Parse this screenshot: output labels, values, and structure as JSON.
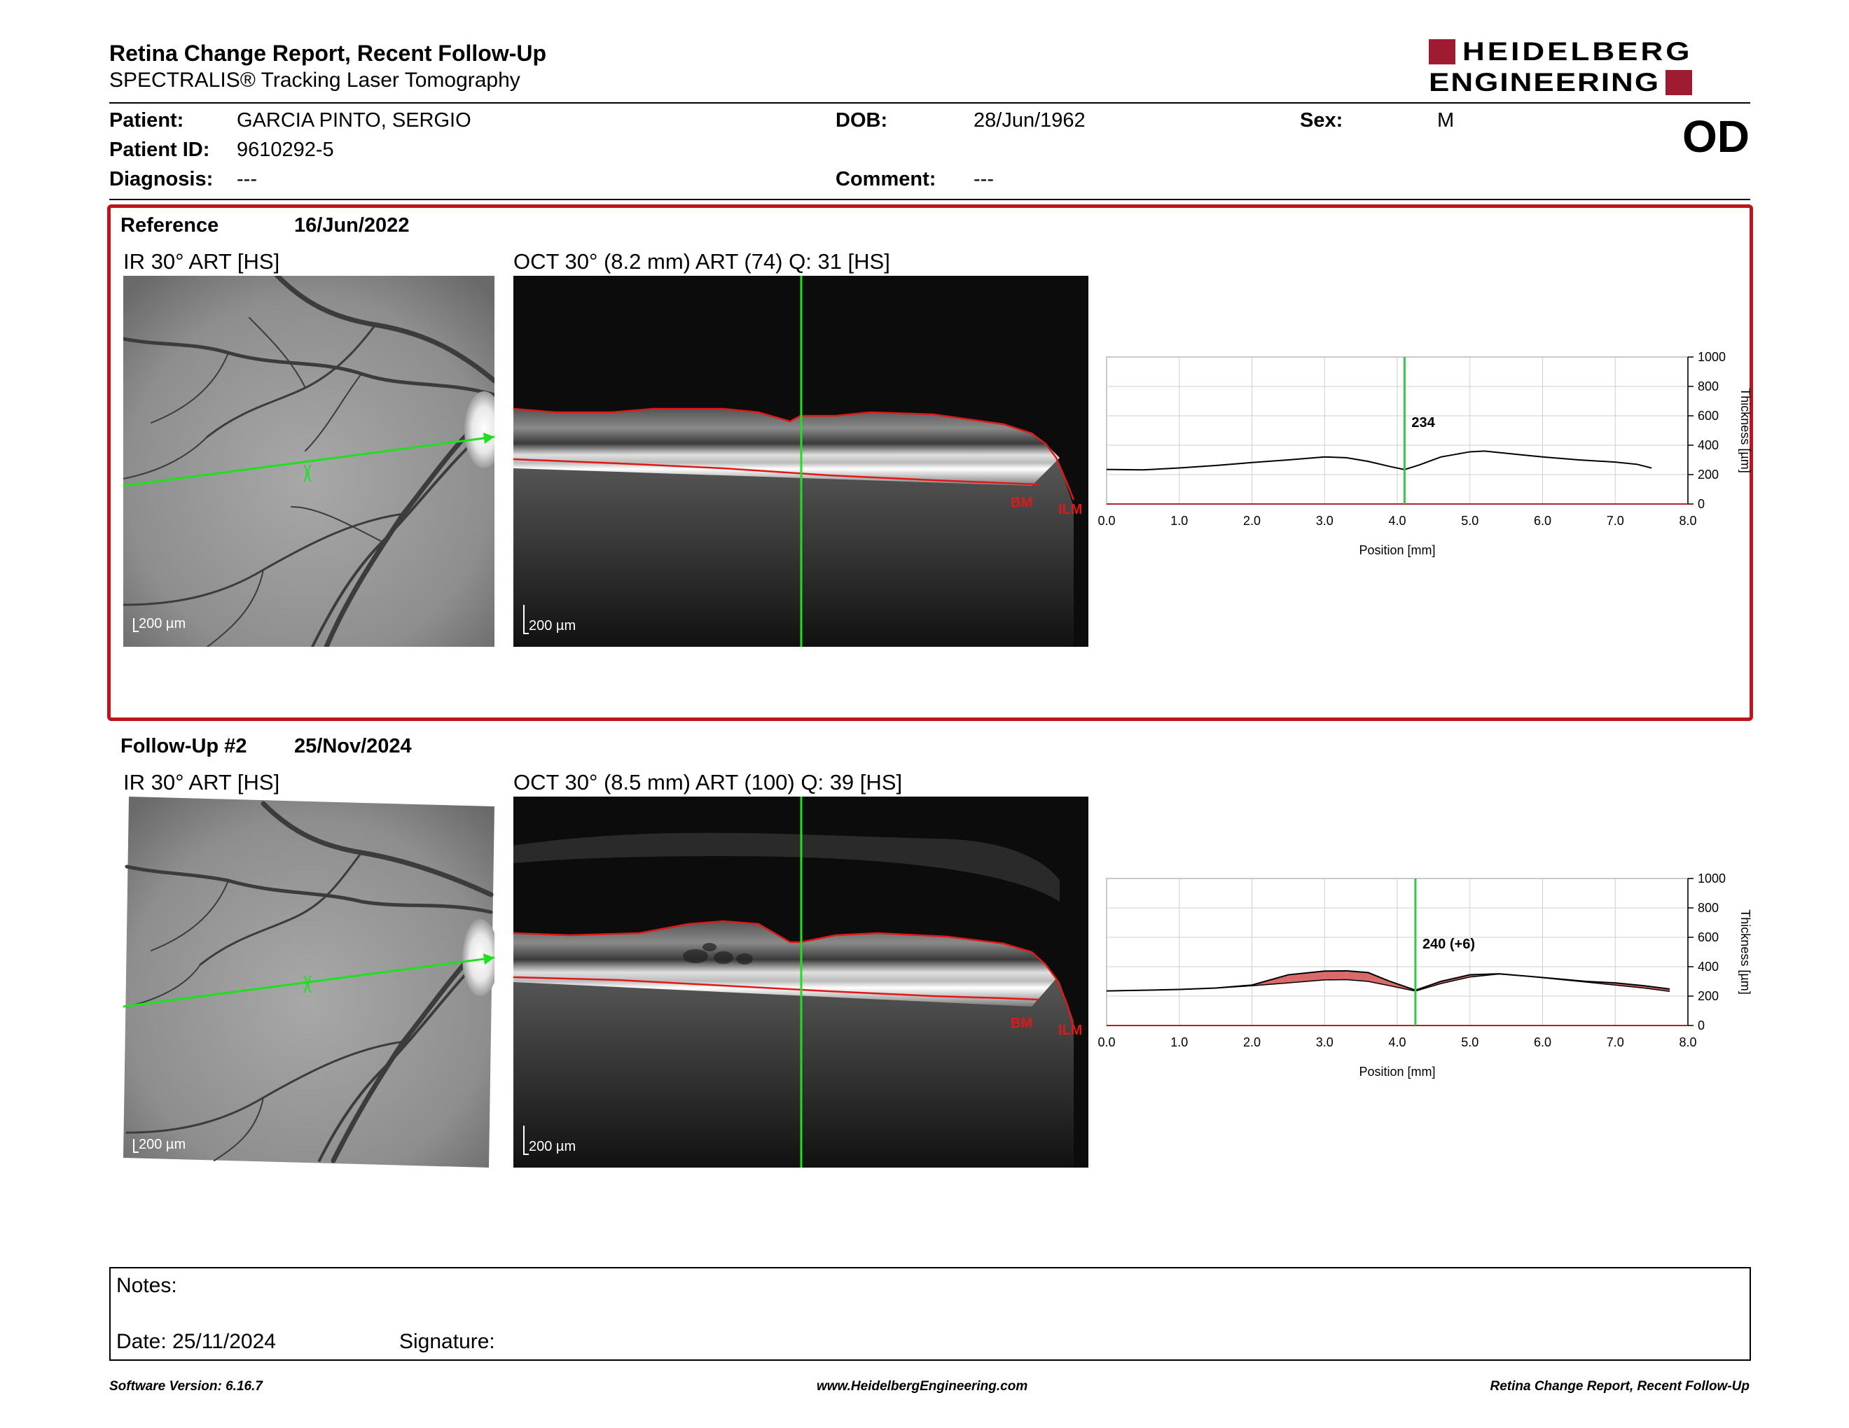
{
  "header": {
    "title": "Retina Change Report, Recent Follow-Up",
    "subtitle": "SPECTRALIS® Tracking Laser Tomography",
    "logo_line1": "HEIDELBERG",
    "logo_line2": "ENGINEERING",
    "brand_color": "#9e1b32"
  },
  "patient": {
    "patient_label": "Patient:",
    "patient_value": "GARCIA PINTO, SERGIO",
    "id_label": "Patient ID:",
    "id_value": "9610292-5",
    "diagnosis_label": "Diagnosis:",
    "diagnosis_value": "---",
    "dob_label": "DOB:",
    "dob_value": "28/Jun/1962",
    "comment_label": "Comment:",
    "comment_value": "---",
    "sex_label": "Sex:",
    "sex_value": "M",
    "eye": "OD"
  },
  "reference": {
    "label": "Reference",
    "date": "16/Jun/2022",
    "ir_title": "IR 30° ART [HS]",
    "oct_title": "OCT 30° (8.2 mm) ART (74) Q: 31 [HS]",
    "scale_ir": "200 µm",
    "scale_oct": "200 µm",
    "bm_label": "BM",
    "ilm_label": "ILM"
  },
  "followup": {
    "label": "Follow-Up #2",
    "date": "25/Nov/2024",
    "ir_title": "IR 30° ART [HS]",
    "oct_title": "OCT 30° (8.5 mm) ART (100) Q: 39 [HS]",
    "scale_ir": "200 µm",
    "scale_oct": "200 µm",
    "bm_label": "BM",
    "ilm_label": "ILM"
  },
  "chart_data": [
    {
      "type": "line",
      "xlabel": "Position [mm]",
      "ylabel": "Thickness [µm]",
      "xlim": [
        0,
        8
      ],
      "ylim": [
        0,
        1000
      ],
      "xticks": [
        "0.0",
        "1.0",
        "2.0",
        "3.0",
        "4.0",
        "5.0",
        "6.0",
        "7.0",
        "8.0"
      ],
      "yticks": [
        "0",
        "200",
        "400",
        "600",
        "800",
        "1000"
      ],
      "cursor_x": 4.1,
      "cursor_label": "234",
      "grid": true,
      "series": [
        {
          "x": [
            0.0,
            0.5,
            1.0,
            1.5,
            2.0,
            2.5,
            3.0,
            3.3,
            3.6,
            3.9,
            4.1,
            4.3,
            4.6,
            5.0,
            5.2,
            5.6,
            6.0,
            6.5,
            7.0,
            7.3,
            7.5
          ],
          "values": [
            235,
            232,
            245,
            262,
            282,
            300,
            320,
            315,
            290,
            255,
            234,
            265,
            320,
            355,
            360,
            340,
            320,
            300,
            285,
            270,
            245
          ]
        }
      ],
      "colors": {
        "line": "#000000",
        "cursor": "#2ecc40",
        "baseline": "#b22222"
      }
    },
    {
      "type": "line",
      "xlabel": "Position [mm]",
      "ylabel": "Thickness [µm]",
      "xlim": [
        0,
        8
      ],
      "ylim": [
        0,
        1000
      ],
      "xticks": [
        "0.0",
        "1.0",
        "2.0",
        "3.0",
        "4.0",
        "5.0",
        "6.0",
        "7.0",
        "8.0"
      ],
      "yticks": [
        "0",
        "200",
        "400",
        "600",
        "800",
        "1000"
      ],
      "cursor_x": 4.25,
      "cursor_label": "240 (+6)",
      "grid": true,
      "series": [
        {
          "x": [
            0.0,
            0.5,
            1.0,
            1.5,
            2.0,
            2.5,
            3.0,
            3.3,
            3.6,
            3.9,
            4.25,
            4.6,
            5.0,
            5.4,
            5.8,
            6.2,
            6.6,
            7.0,
            7.4,
            7.75
          ],
          "values": [
            235,
            240,
            245,
            255,
            275,
            345,
            370,
            372,
            360,
            300,
            240,
            300,
            345,
            352,
            335,
            318,
            300,
            290,
            270,
            248
          ]
        },
        {
          "x": [
            0.0,
            0.5,
            1.0,
            1.5,
            2.0,
            2.5,
            3.0,
            3.3,
            3.6,
            3.9,
            4.25,
            4.6,
            5.0,
            5.4,
            5.8,
            6.2,
            6.6,
            7.0,
            7.4,
            7.75
          ],
          "values": [
            235,
            240,
            245,
            255,
            270,
            290,
            310,
            312,
            300,
            270,
            234,
            285,
            330,
            350,
            335,
            315,
            295,
            275,
            255,
            232
          ]
        }
      ],
      "colors": {
        "line": "#000000",
        "cursor": "#2ecc40",
        "baseline": "#b22222",
        "increase": "#d96a6a",
        "decrease": "#6cc46c"
      }
    }
  ],
  "notes": {
    "notes_label": "Notes:",
    "date_label": "Date: 25/11/2024",
    "signature_label": "Signature:"
  },
  "footer": {
    "software": "Software Version: 6.16.7",
    "website": "www.HeidelbergEngineering.com",
    "report": "Retina Change Report, Recent Follow-Up"
  }
}
